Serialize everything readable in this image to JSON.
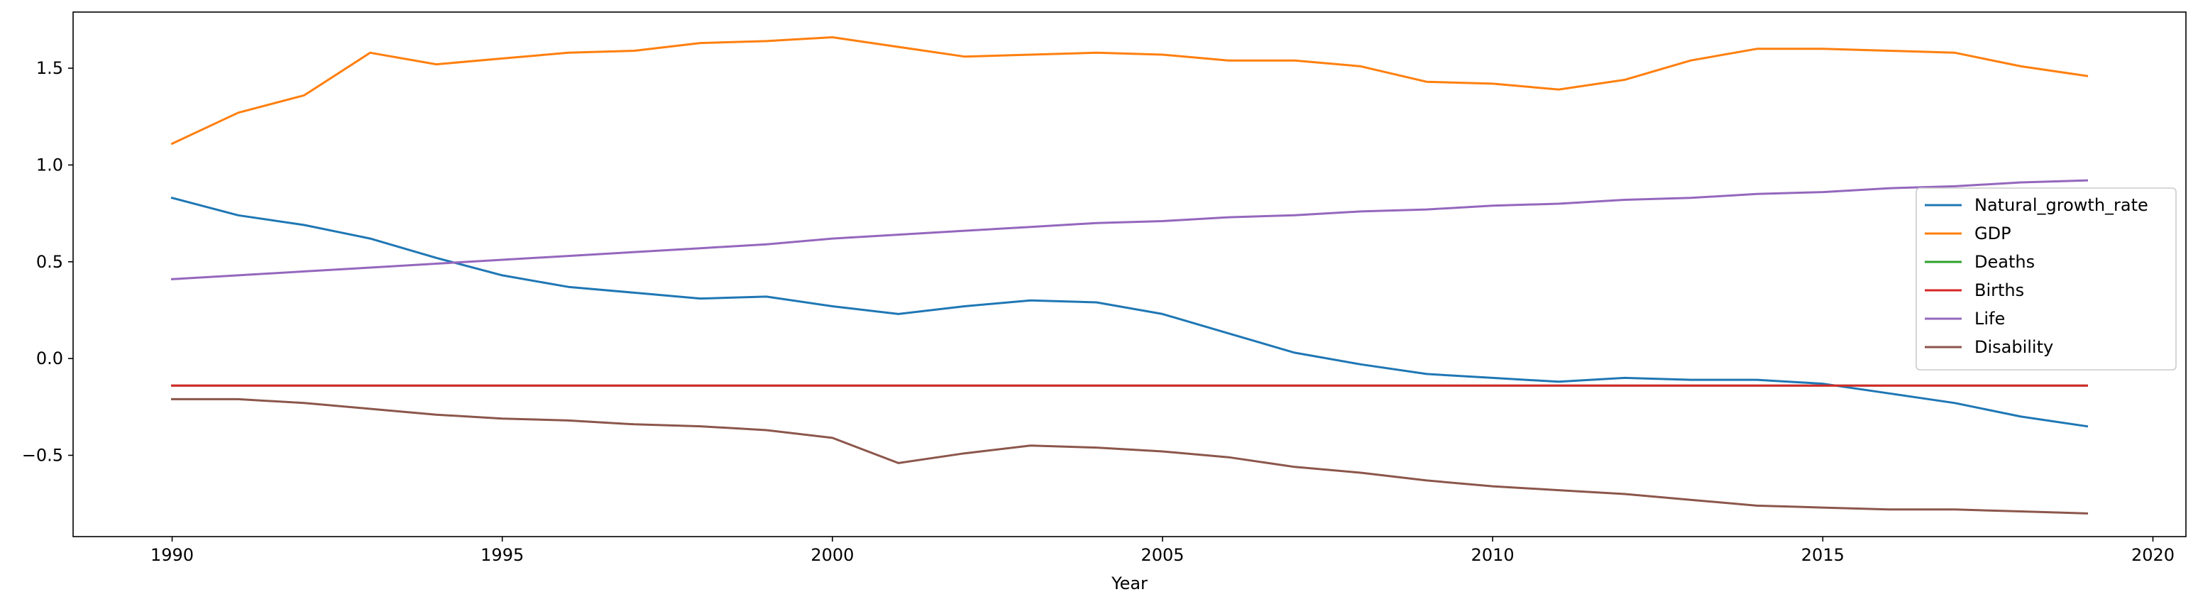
{
  "chart_data": {
    "type": "line",
    "title": "",
    "xlabel": "Year",
    "ylabel": "",
    "xlim": [
      1988.5,
      2020.5
    ],
    "ylim": [
      -0.92,
      1.79
    ],
    "xticks": [
      1990,
      1995,
      2000,
      2005,
      2010,
      2015,
      2020
    ],
    "xtick_labels": [
      "1990",
      "1995",
      "2000",
      "2005",
      "2010",
      "2015",
      "2020"
    ],
    "yticks": [
      -0.5,
      0.0,
      0.5,
      1.0,
      1.5
    ],
    "ytick_labels": [
      "−0.5",
      "0.0",
      "0.5",
      "1.0",
      "1.5"
    ],
    "grid": false,
    "legend_position": "center-right",
    "x": [
      1990,
      1991,
      1992,
      1993,
      1994,
      1995,
      1996,
      1997,
      1998,
      1999,
      2000,
      2001,
      2002,
      2003,
      2004,
      2005,
      2006,
      2007,
      2008,
      2009,
      2010,
      2011,
      2012,
      2013,
      2014,
      2015,
      2016,
      2017,
      2018,
      2019
    ],
    "series": [
      {
        "name": "Natural_growth_rate",
        "color": "#1f77b4",
        "values": [
          0.83,
          0.74,
          0.69,
          0.62,
          0.52,
          0.43,
          0.37,
          0.34,
          0.31,
          0.32,
          0.27,
          0.23,
          0.27,
          0.3,
          0.29,
          0.23,
          0.13,
          0.03,
          -0.03,
          -0.08,
          -0.1,
          -0.12,
          -0.1,
          -0.11,
          -0.11,
          -0.13,
          -0.18,
          -0.23,
          -0.3,
          -0.35
        ]
      },
      {
        "name": "GDP",
        "color": "#ff7f0e",
        "values": [
          1.11,
          1.27,
          1.36,
          1.58,
          1.52,
          1.55,
          1.58,
          1.59,
          1.63,
          1.64,
          1.66,
          1.61,
          1.56,
          1.57,
          1.58,
          1.57,
          1.54,
          1.54,
          1.51,
          1.43,
          1.42,
          1.39,
          1.44,
          1.54,
          1.6,
          1.6,
          1.59,
          1.58,
          1.51,
          1.46
        ]
      },
      {
        "name": "Deaths",
        "color": "#2ca02c",
        "values": [
          -0.14,
          -0.14,
          -0.14,
          -0.14,
          -0.14,
          -0.14,
          -0.14,
          -0.14,
          -0.14,
          -0.14,
          -0.14,
          -0.14,
          -0.14,
          -0.14,
          -0.14,
          -0.14,
          -0.14,
          -0.14,
          -0.14,
          -0.14,
          -0.14,
          -0.14,
          -0.14,
          -0.14,
          -0.14,
          -0.14,
          -0.14,
          -0.14,
          -0.14,
          -0.14
        ]
      },
      {
        "name": "Births",
        "color": "#d62728",
        "values": [
          -0.14,
          -0.14,
          -0.14,
          -0.14,
          -0.14,
          -0.14,
          -0.14,
          -0.14,
          -0.14,
          -0.14,
          -0.14,
          -0.14,
          -0.14,
          -0.14,
          -0.14,
          -0.14,
          -0.14,
          -0.14,
          -0.14,
          -0.14,
          -0.14,
          -0.14,
          -0.14,
          -0.14,
          -0.14,
          -0.14,
          -0.14,
          -0.14,
          -0.14,
          -0.14
        ]
      },
      {
        "name": "Life",
        "color": "#9467bd",
        "values": [
          0.41,
          0.43,
          0.45,
          0.47,
          0.49,
          0.51,
          0.53,
          0.55,
          0.57,
          0.59,
          0.62,
          0.64,
          0.66,
          0.68,
          0.7,
          0.71,
          0.73,
          0.74,
          0.76,
          0.77,
          0.79,
          0.8,
          0.82,
          0.83,
          0.85,
          0.86,
          0.88,
          0.89,
          0.91,
          0.92
        ]
      },
      {
        "name": "Disability",
        "color": "#8c564b",
        "values": [
          -0.21,
          -0.21,
          -0.23,
          -0.26,
          -0.29,
          -0.31,
          -0.32,
          -0.34,
          -0.35,
          -0.37,
          -0.41,
          -0.54,
          -0.49,
          -0.45,
          -0.46,
          -0.48,
          -0.51,
          -0.56,
          -0.59,
          -0.63,
          -0.66,
          -0.68,
          -0.7,
          -0.73,
          -0.76,
          -0.77,
          -0.78,
          -0.78,
          -0.79,
          -0.8
        ]
      }
    ]
  }
}
